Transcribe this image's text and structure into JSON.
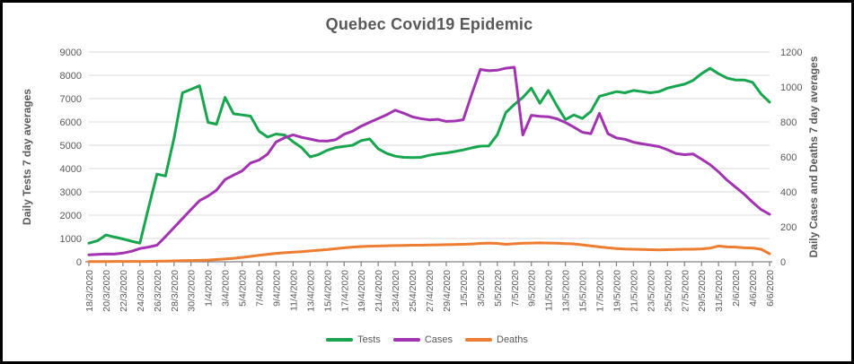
{
  "title": "Quebec Covid19 Epidemic",
  "axes": {
    "left_label": "Daily Tests 7 day averages",
    "right_label": "Daily Cases and Deaths 7 day averages"
  },
  "legend": [
    {
      "label": "Tests",
      "color": "#17A54E"
    },
    {
      "label": "Cases",
      "color": "#A233B1"
    },
    {
      "label": "Deaths",
      "color": "#ED7D31"
    }
  ],
  "colors": {
    "text": "#595959",
    "gridline": "#D9D9D9",
    "axis_line": "#808080",
    "tests": "#17A54E",
    "cases": "#A233B1",
    "deaths": "#ED7D31"
  },
  "chart_data": {
    "type": "line",
    "title": "Quebec Covid19 Epidemic",
    "grid": true,
    "legend_position": "bottom",
    "left_axis": {
      "label": "Daily Tests 7 day averages",
      "ylim": [
        0,
        9000
      ],
      "tick_step": 1000
    },
    "right_axis": {
      "label": "Daily Cases and Deaths 7 day averages",
      "ylim": [
        0,
        1200
      ],
      "tick_step": 200
    },
    "x_start_date": "18/3/2020",
    "x_end_date": "6/6/2020",
    "x_tick_every_days": 2,
    "x_tick_labels": [
      "18/3/2020",
      "20/3/2020",
      "22/3/2020",
      "24/3/2020",
      "26/3/2020",
      "28/3/2020",
      "30/3/2020",
      "1/4/2020",
      "3/4/2020",
      "5/4/2020",
      "7/4/2020",
      "9/4/2020",
      "11/4/2020",
      "13/4/2020",
      "15/4/2020",
      "17/4/2020",
      "19/4/2020",
      "21/4/2020",
      "23/4/2020",
      "25/4/2020",
      "27/4/2020",
      "29/4/2020",
      "1/5/2020",
      "3/5/2020",
      "5/5/2020",
      "7/5/2020",
      "9/5/2020",
      "11/5/2020",
      "13/5/2020",
      "15/5/2020",
      "17/5/2020",
      "19/5/2020",
      "21/5/2020",
      "23/5/2020",
      "25/5/2020",
      "27/5/2020",
      "29/5/2020",
      "31/5/2020",
      "2/6/2020",
      "4/6/2020",
      "6/6/2020"
    ],
    "series": [
      {
        "name": "Tests",
        "axis": "left",
        "color": "#17A54E",
        "values": [
          800,
          900,
          1150,
          1060,
          980,
          880,
          800,
          2300,
          3760,
          3680,
          5300,
          7250,
          7400,
          7550,
          5980,
          5900,
          7050,
          6350,
          6300,
          6250,
          5600,
          5350,
          5480,
          5440,
          5150,
          4900,
          4500,
          4600,
          4780,
          4900,
          4950,
          5000,
          5200,
          5270,
          4850,
          4650,
          4530,
          4480,
          4470,
          4480,
          4570,
          4630,
          4670,
          4730,
          4800,
          4890,
          4960,
          4970,
          5450,
          6400,
          6750,
          7050,
          7450,
          6800,
          7350,
          6700,
          6100,
          6300,
          6150,
          6450,
          7100,
          7200,
          7300,
          7250,
          7350,
          7300,
          7250,
          7300,
          7450,
          7540,
          7620,
          7780,
          8070,
          8300,
          8070,
          7880,
          7800,
          7800,
          7700,
          7200,
          6850
        ]
      },
      {
        "name": "Cases",
        "axis": "right",
        "color": "#A233B1",
        "values": [
          40,
          42,
          45,
          44,
          50,
          60,
          76,
          84,
          95,
          144,
          196,
          247,
          299,
          350,
          376,
          410,
          470,
          496,
          520,
          565,
          582,
          616,
          685,
          710,
          726,
          712,
          702,
          692,
          690,
          698,
          730,
          747,
          776,
          798,
          819,
          841,
          867,
          850,
          829,
          819,
          812,
          815,
          803,
          805,
          813,
          960,
          1100,
          1093,
          1096,
          1107,
          1113,
          725,
          838,
          832,
          830,
          818,
          797,
          770,
          741,
          733,
          849,
          733,
          708,
          701,
          684,
          675,
          667,
          659,
          641,
          619,
          613,
          617,
          587,
          556,
          515,
          467,
          427,
          387,
          341,
          299,
          272
        ]
      },
      {
        "name": "Deaths",
        "axis": "right",
        "color": "#ED7D31",
        "values": [
          1,
          1,
          1,
          2,
          2,
          2,
          2,
          2,
          3,
          4,
          5,
          6,
          7,
          8,
          10,
          13,
          16,
          20,
          25,
          31,
          37,
          43,
          48,
          52,
          55,
          58,
          62,
          66,
          70,
          75,
          80,
          84,
          87,
          89,
          90,
          92,
          93,
          94,
          95,
          95,
          96,
          97,
          98,
          99,
          100,
          102,
          105,
          107,
          105,
          100,
          103,
          106,
          107,
          108,
          107,
          106,
          104,
          102,
          97,
          91,
          85,
          80,
          76,
          73,
          72,
          71,
          69,
          68,
          69,
          71,
          72,
          72,
          74,
          78,
          90,
          85,
          84,
          80,
          79,
          72,
          46
        ]
      }
    ]
  }
}
